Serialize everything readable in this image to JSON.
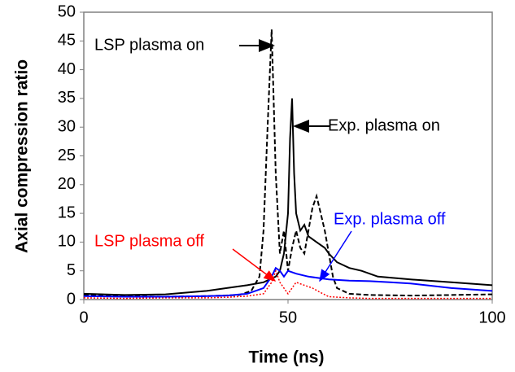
{
  "chart_data": {
    "type": "line",
    "xlabel": "Time (ns)",
    "ylabel": "Axial compression ratio",
    "xlim": [
      0,
      100
    ],
    "ylim": [
      0,
      50
    ],
    "xticks": [
      0,
      50,
      100
    ],
    "yticks": [
      0,
      5,
      10,
      15,
      20,
      25,
      30,
      35,
      40,
      45,
      50
    ],
    "series": [
      {
        "name": "LSP plasma on",
        "color": "#000000",
        "dash": "dashed",
        "x": [
          0,
          10,
          20,
          30,
          38,
          41,
          43,
          44,
          45,
          46,
          47,
          48,
          49,
          50,
          51,
          52,
          53,
          54,
          55,
          56,
          57,
          58,
          59,
          60,
          61,
          62,
          65,
          70,
          80,
          90,
          100
        ],
        "values": [
          0.8,
          0.6,
          0.5,
          0.6,
          0.8,
          1.5,
          4,
          12,
          30,
          47,
          22,
          8,
          12,
          5,
          9,
          12,
          9,
          8,
          12,
          16,
          18,
          15,
          12,
          8,
          4,
          2,
          1,
          0.8,
          0.7,
          0.8,
          0.9
        ]
      },
      {
        "name": "Exp. plasma on",
        "color": "#000000",
        "dash": "solid",
        "x": [
          0,
          10,
          20,
          25,
          30,
          35,
          40,
          44,
          47,
          48,
          49,
          50,
          50.5,
          51,
          51.5,
          52,
          53,
          54,
          55,
          57,
          59,
          60,
          62,
          65,
          68,
          72,
          80,
          90,
          100
        ],
        "values": [
          1,
          0.8,
          0.9,
          1.2,
          1.5,
          2,
          2.5,
          3,
          4,
          5,
          8,
          15,
          28,
          35,
          22,
          15,
          12,
          13,
          11,
          10,
          9,
          8,
          6.5,
          5.5,
          5,
          4,
          3.5,
          3,
          2.5
        ]
      },
      {
        "name": "LSP plasma off",
        "color": "#ff0000",
        "dash": "dotted",
        "x": [
          0,
          10,
          20,
          30,
          35,
          40,
          44,
          46,
          47,
          48,
          49,
          50,
          52,
          54,
          56,
          58,
          60,
          65,
          70,
          80,
          90,
          100
        ],
        "values": [
          0.3,
          0.2,
          0.3,
          0.3,
          0.4,
          0.6,
          1,
          3,
          5,
          3,
          2,
          1,
          3,
          2.5,
          2,
          1.2,
          0.5,
          0.3,
          0.2,
          0.2,
          0.2,
          0.2
        ]
      },
      {
        "name": "Exp. plasma off",
        "color": "#0000ff",
        "dash": "solid",
        "x": [
          0,
          10,
          20,
          30,
          35,
          40,
          44,
          46,
          47,
          48,
          49,
          50,
          52,
          55,
          58,
          60,
          65,
          70,
          75,
          80,
          90,
          100
        ],
        "values": [
          0.6,
          0.5,
          0.5,
          0.6,
          0.7,
          1,
          2,
          4,
          5.5,
          5,
          4,
          5,
          4.5,
          4,
          3.7,
          3.5,
          3.3,
          3.2,
          3,
          2.8,
          2,
          1.5
        ]
      }
    ],
    "annotations": [
      "LSP plasma on",
      "Exp. plasma on",
      "Exp. plasma off",
      "LSP plasma off"
    ]
  }
}
